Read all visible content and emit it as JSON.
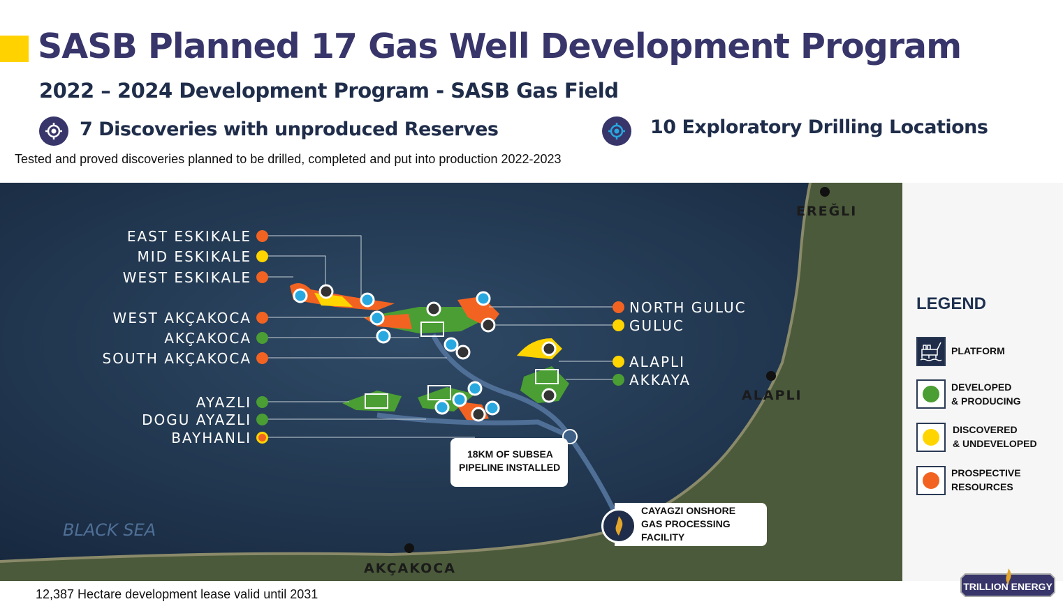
{
  "header": {
    "title": "SASB Planned 17 Gas Well Development  Program",
    "subtitle": "2022 – 2024 Development Program  - SASB Gas Field"
  },
  "highlights": [
    {
      "icon": "target-white-icon",
      "text": "7 Discoveries with unproduced Reserves"
    },
    {
      "icon": "target-blue-icon",
      "text": "10 Exploratory Drilling Locations"
    }
  ],
  "description": "Tested and proved discoveries planned to be drilled, completed and put into production 2022-2023",
  "map": {
    "fields_left": [
      {
        "name": "EAST ESKIKALE",
        "status": "prospective"
      },
      {
        "name": "MID ESKIKALE",
        "status": "discovered"
      },
      {
        "name": "WEST ESKIKALE",
        "status": "prospective"
      },
      {
        "name": "WEST AKÇAKOCA",
        "status": "prospective"
      },
      {
        "name": "AKÇAKOCA",
        "status": "developed"
      },
      {
        "name": "SOUTH AKÇAKOCA",
        "status": "prospective"
      },
      {
        "name": "AYAZLI",
        "status": "developed"
      },
      {
        "name": "DOGU AYAZLI",
        "status": "developed"
      },
      {
        "name": "BAYHANLI",
        "status": "prospective"
      }
    ],
    "fields_right": [
      {
        "name": "NORTH GULUC",
        "status": "prospective"
      },
      {
        "name": "GULUC",
        "status": "discovered"
      },
      {
        "name": "ALAPLI",
        "status": "discovered"
      },
      {
        "name": "AKKAYA",
        "status": "developed"
      }
    ],
    "towns": [
      "EREĞLI",
      "ALAPLI",
      "AKÇAKOCA"
    ],
    "sea": "BLACK SEA",
    "pipeline_callout": [
      "18KM OF SUBSEA",
      "PIPELINE INSTALLED"
    ],
    "facility_callout": [
      "CAYAGZI ONSHORE",
      "GAS PROCESSING",
      "FACILITY"
    ]
  },
  "legend": {
    "title": "LEGEND",
    "items": [
      {
        "icon": "platform-icon",
        "lines": [
          "PLATFORM"
        ]
      },
      {
        "color": "#4a9e34",
        "lines": [
          "DEVELOPED",
          "& PRODUCING"
        ]
      },
      {
        "color": "#ffd500",
        "lines": [
          "DISCOVERED",
          "& UNDEVELOPED"
        ]
      },
      {
        "color": "#f26322",
        "lines": [
          "PROSPECTIVE",
          "RESOURCES"
        ]
      }
    ]
  },
  "colors": {
    "developed": "#4a9e34",
    "discovered": "#ffd500",
    "prospective": "#f26322",
    "brand": "#37356a",
    "accent": "#ffd200"
  },
  "footer": "12,387 Hectare development lease valid until 2031",
  "logo": "TRILLION ENERGY"
}
